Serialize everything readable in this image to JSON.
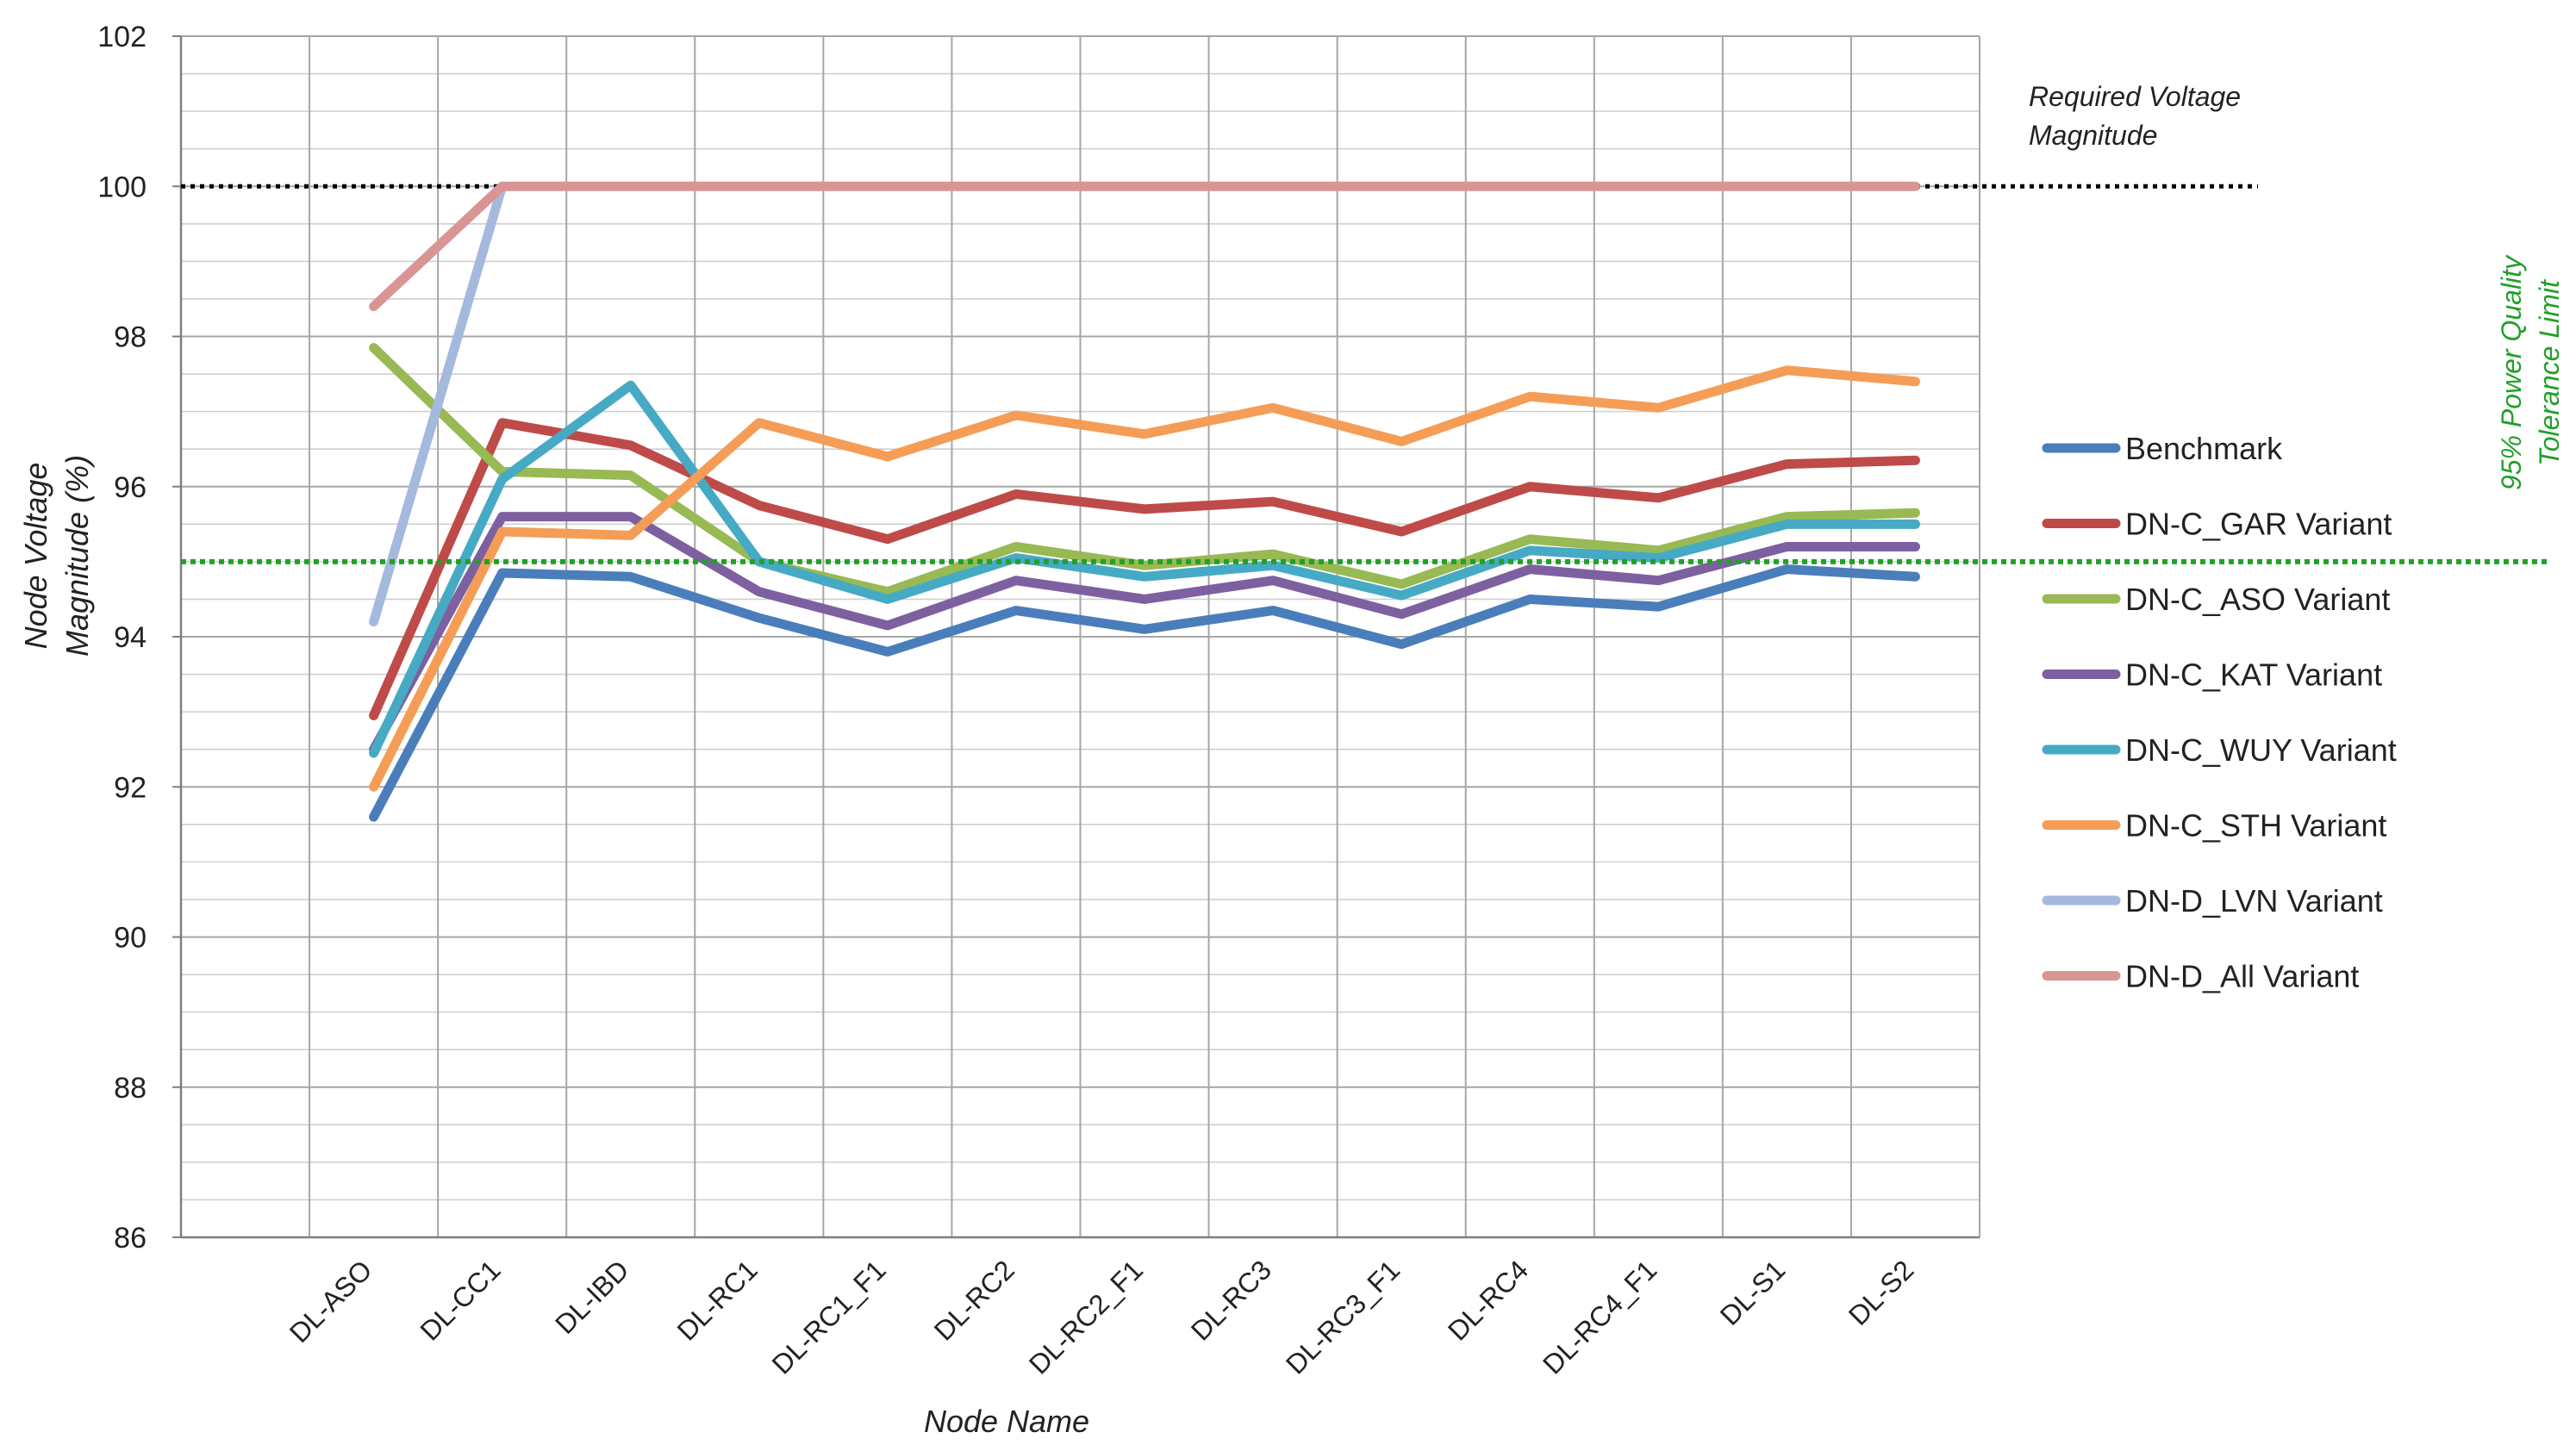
{
  "chart_data": {
    "type": "line",
    "title": "",
    "xlabel": "Node Name",
    "ylabel_lines": [
      "Node Voltage",
      "Magnitude (%)"
    ],
    "ylim": [
      86,
      102
    ],
    "y_ticks": [
      86,
      88,
      90,
      92,
      94,
      96,
      98,
      100,
      102
    ],
    "grid": true,
    "legend_position": "right",
    "categories": [
      "DL-ASO",
      "DL-CC1",
      "DL-IBD",
      "DL-RC1",
      "DL-RC1_F1",
      "DL-RC2",
      "DL-RC2_F1",
      "DL-RC3",
      "DL-RC3_F1",
      "DL-RC4",
      "DL-RC4_F1",
      "DL-S1",
      "DL-S2"
    ],
    "series": [
      {
        "name": "Benchmark",
        "color": "#4a7ebb",
        "values": [
          91.6,
          94.85,
          94.8,
          94.25,
          93.8,
          94.35,
          94.1,
          94.35,
          93.9,
          94.5,
          94.4,
          94.9,
          94.8
        ]
      },
      {
        "name": "DN-C_GAR Variant",
        "color": "#be4b48",
        "values": [
          92.95,
          96.85,
          96.55,
          95.75,
          95.3,
          95.9,
          95.7,
          95.8,
          95.4,
          96.0,
          95.85,
          96.3,
          96.35
        ]
      },
      {
        "name": "DN-C_ASO Variant",
        "color": "#98b954",
        "values": [
          97.85,
          96.2,
          96.15,
          95.0,
          94.6,
          95.2,
          94.95,
          95.1,
          94.7,
          95.3,
          95.15,
          95.6,
          95.65
        ]
      },
      {
        "name": "DN-C_KAT Variant",
        "color": "#7d60a0",
        "values": [
          92.5,
          95.6,
          95.6,
          94.6,
          94.15,
          94.75,
          94.5,
          94.75,
          94.3,
          94.9,
          94.75,
          95.2,
          95.2
        ]
      },
      {
        "name": "DN-C_WUY Variant",
        "color": "#46aac5",
        "values": [
          92.45,
          96.1,
          97.35,
          95.0,
          94.5,
          95.05,
          94.8,
          94.95,
          94.55,
          95.15,
          95.05,
          95.5,
          95.5
        ]
      },
      {
        "name": "DN-C_STH Variant",
        "color": "#f59d56",
        "values": [
          92.0,
          95.4,
          95.35,
          96.85,
          96.4,
          96.95,
          96.7,
          97.05,
          96.6,
          97.2,
          97.05,
          97.55,
          97.4
        ]
      },
      {
        "name": "DN-D_LVN Variant",
        "color": "#a5b9de",
        "values": [
          94.2,
          100.0,
          null,
          null,
          null,
          null,
          null,
          null,
          null,
          null,
          null,
          null,
          null
        ]
      },
      {
        "name": "DN-D_All Variant",
        "color": "#d99594",
        "values": [
          98.4,
          100.0,
          100.0,
          100.0,
          100.0,
          100.0,
          100.0,
          100.0,
          100.0,
          100.0,
          100.0,
          100.0,
          100.0
        ]
      }
    ],
    "reference_lines": [
      {
        "value": 100,
        "color": "#000000",
        "label_lines": [
          "Required Voltage",
          "Magnitude"
        ]
      },
      {
        "value": 95,
        "color": "#22a02a",
        "label_lines": [
          "95% Power Quality",
          "Tolerance Limit"
        ]
      }
    ]
  }
}
